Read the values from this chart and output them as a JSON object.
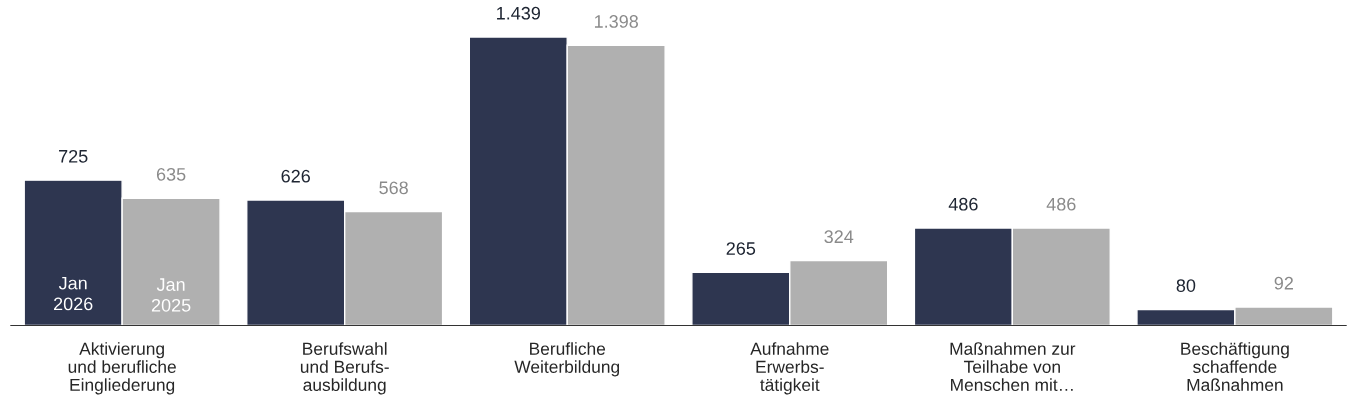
{
  "chart_data": {
    "type": "bar",
    "categories": [
      "Aktivierung\nund berufliche\nEingliederung",
      "Berufswahl\nund Berufs-\nausbildung",
      "Berufliche\nWeiterbildung",
      "Aufnahme\nErwerbs-\ntätigkeit",
      "Maßnahmen zur\nTeilhabe von\nMenschen mit…",
      "Beschäftigung\nschaffende\nMaßnahmen"
    ],
    "series": [
      {
        "name": "Jan\n2026",
        "color": "#2e3650",
        "values": [
          725,
          626,
          1439,
          265,
          486,
          80
        ],
        "value_labels": [
          "725",
          "626",
          "1.439",
          "265",
          "486",
          "80"
        ]
      },
      {
        "name": "Jan\n2025",
        "color": "#b0b0b0",
        "values": [
          635,
          568,
          1398,
          324,
          486,
          92
        ],
        "value_labels": [
          "635",
          "568",
          "1.398",
          "324",
          "486",
          "92"
        ]
      }
    ],
    "grid": false,
    "legend": false
  }
}
